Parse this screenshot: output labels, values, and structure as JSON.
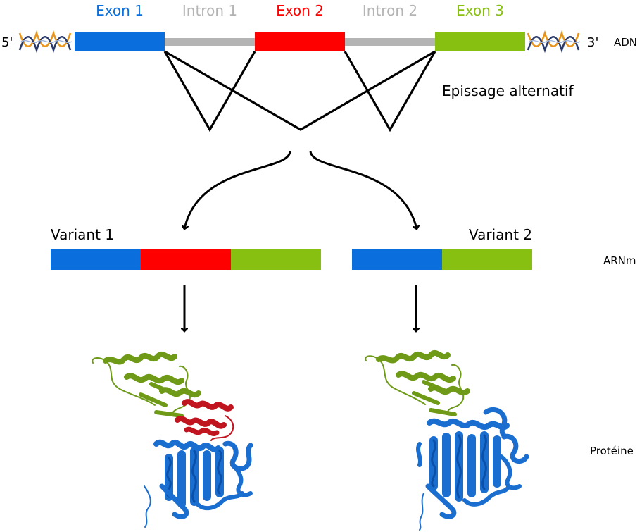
{
  "dna": {
    "five_prime": "5'",
    "three_prime": "3'",
    "row_label": "ADN",
    "exons": [
      {
        "label": "Exon 1",
        "color": "#0a6fdc"
      },
      {
        "label": "Exon 2",
        "color": "#ff0000"
      },
      {
        "label": "Exon 3",
        "color": "#87c010"
      }
    ],
    "introns": [
      {
        "label": "Intron 1",
        "color": "#b4b4b4"
      },
      {
        "label": "Intron 2",
        "color": "#b4b4b4"
      }
    ]
  },
  "splicing": {
    "label": "Epissage alternatif"
  },
  "mrna": {
    "row_label": "ARNm",
    "variants": [
      {
        "label": "Variant 1",
        "segments": [
          "exon1",
          "exon2",
          "exon3"
        ]
      },
      {
        "label": "Variant 2",
        "segments": [
          "exon1",
          "exon3"
        ]
      }
    ]
  },
  "protein": {
    "row_label": "Protéine"
  },
  "colors": {
    "exon1": "#0a6fdc",
    "exon2": "#ff0000",
    "exon3": "#87c010",
    "intron": "#b4b4b4",
    "line": "#000000",
    "helix_blue": "#1a6ed0",
    "helix_green": "#6e9a18",
    "helix_red": "#c0141e"
  }
}
